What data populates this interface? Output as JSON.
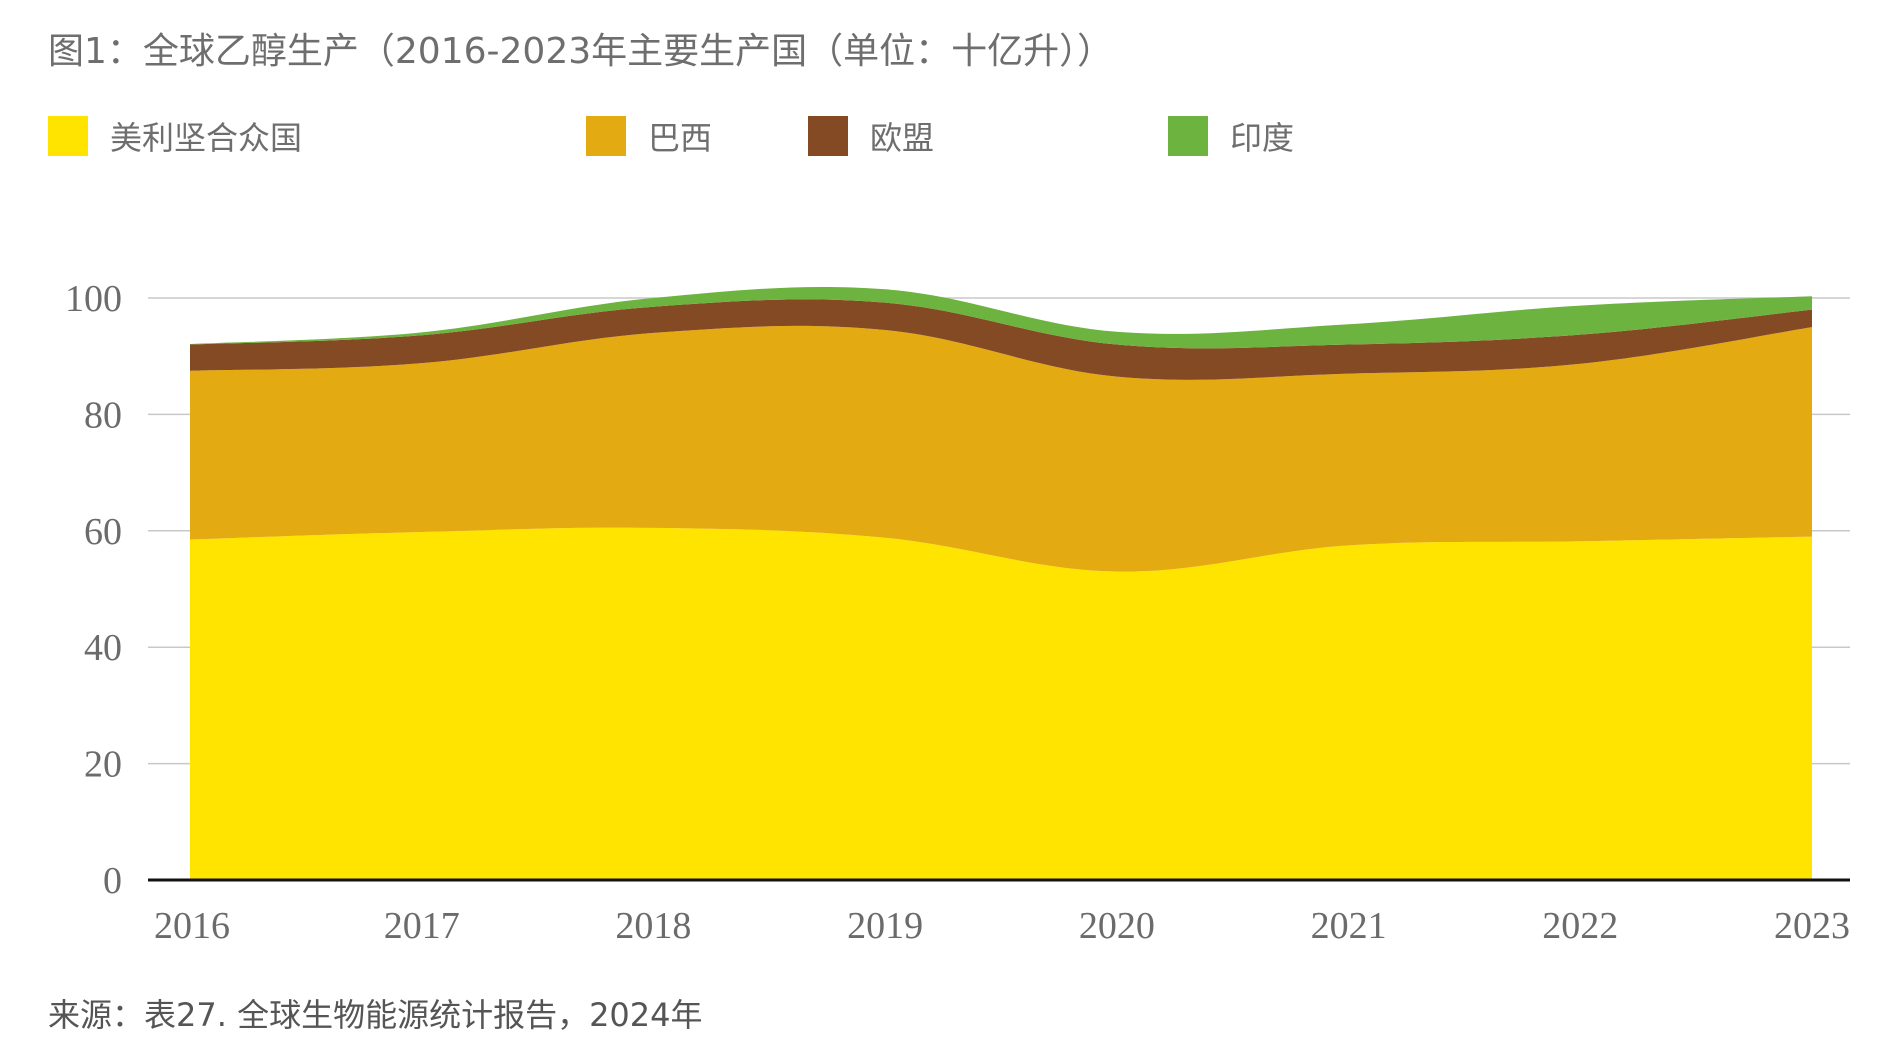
{
  "title": "图1：全球乙醇生产（2016-2023年主要生产国（单位：十亿升））",
  "source": "来源：表27. 全球生物能源统计报告，2024年",
  "chart_data": {
    "type": "area",
    "stacked": true,
    "title": "图1：全球乙醇生产（2016-2023年主要生产国（单位：十亿升））",
    "x": [
      "2016",
      "2017",
      "2018",
      "2019",
      "2020",
      "2021",
      "2022",
      "2023"
    ],
    "ylim": [
      0,
      100
    ],
    "yticks": [
      0,
      20,
      40,
      60,
      80,
      100
    ],
    "grid": true,
    "legend_position": "top",
    "series": [
      {
        "name": "美利坚合众国",
        "color": "#FFE400",
        "values": [
          58.5,
          59.8,
          60.5,
          58.8,
          53.0,
          57.5,
          58.2,
          59.0
        ]
      },
      {
        "name": "巴西",
        "color": "#E3AA12",
        "values": [
          29.0,
          29.0,
          33.5,
          35.7,
          33.5,
          29.5,
          30.5,
          36.0
        ]
      },
      {
        "name": "欧盟",
        "color": "#844A24",
        "values": [
          4.5,
          4.8,
          4.5,
          4.7,
          5.5,
          5.0,
          5.0,
          3.0
        ]
      },
      {
        "name": "印度",
        "color": "#6DB33F",
        "values": [
          0.1,
          0.5,
          1.5,
          2.3,
          2.2,
          3.5,
          5.0,
          2.3
        ]
      }
    ]
  }
}
